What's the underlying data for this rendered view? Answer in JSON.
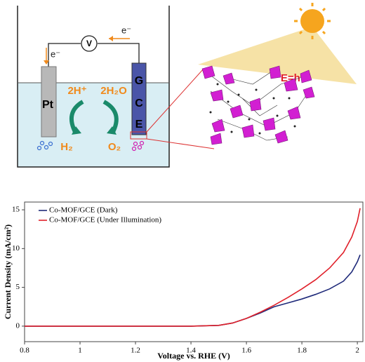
{
  "diagram": {
    "voltmeter": "V",
    "electron_top": "e⁻",
    "electron_left": "e⁻",
    "pt_label": "Pt",
    "gce_label": [
      "G",
      "C",
      "E"
    ],
    "left_reaction": "2H⁺",
    "right_reaction": "2H₂O",
    "left_product": "H₂",
    "right_product": "O₂",
    "energy": "E=hν"
  },
  "chart_data": {
    "type": "line",
    "x_label": "Voltage vs. RHE (V)",
    "y_label": "Current Density (mA/cm²)",
    "x": [
      0.8,
      1.0,
      1.2,
      1.4,
      1.5,
      1.55,
      1.6,
      1.65,
      1.7,
      1.75,
      1.8,
      1.85,
      1.9,
      1.95,
      1.98,
      2.0,
      2.01
    ],
    "series": [
      {
        "name": "Co-MOF/GCE (Dark)",
        "color": "#1f2a7a",
        "values": [
          0,
          0,
          0,
          0,
          0.1,
          0.4,
          1.0,
          1.7,
          2.5,
          3.0,
          3.5,
          4.1,
          4.8,
          5.8,
          7.0,
          8.3,
          9.2
        ]
      },
      {
        "name": "Co-MOF/GCE (Under Illumination)",
        "color": "#e0202a",
        "values": [
          0,
          0,
          0,
          0,
          0.1,
          0.4,
          1.0,
          1.8,
          2.7,
          3.7,
          4.8,
          6.0,
          7.5,
          9.5,
          11.5,
          13.5,
          15.2
        ]
      }
    ],
    "xlim": [
      0.8,
      2.02
    ],
    "ylim": [
      -2,
      16
    ],
    "xticks": [
      0.8,
      1,
      1.2,
      1.4,
      1.6,
      1.8,
      2
    ],
    "yticks": [
      0,
      5,
      10,
      15
    ],
    "legend": "upper left"
  }
}
